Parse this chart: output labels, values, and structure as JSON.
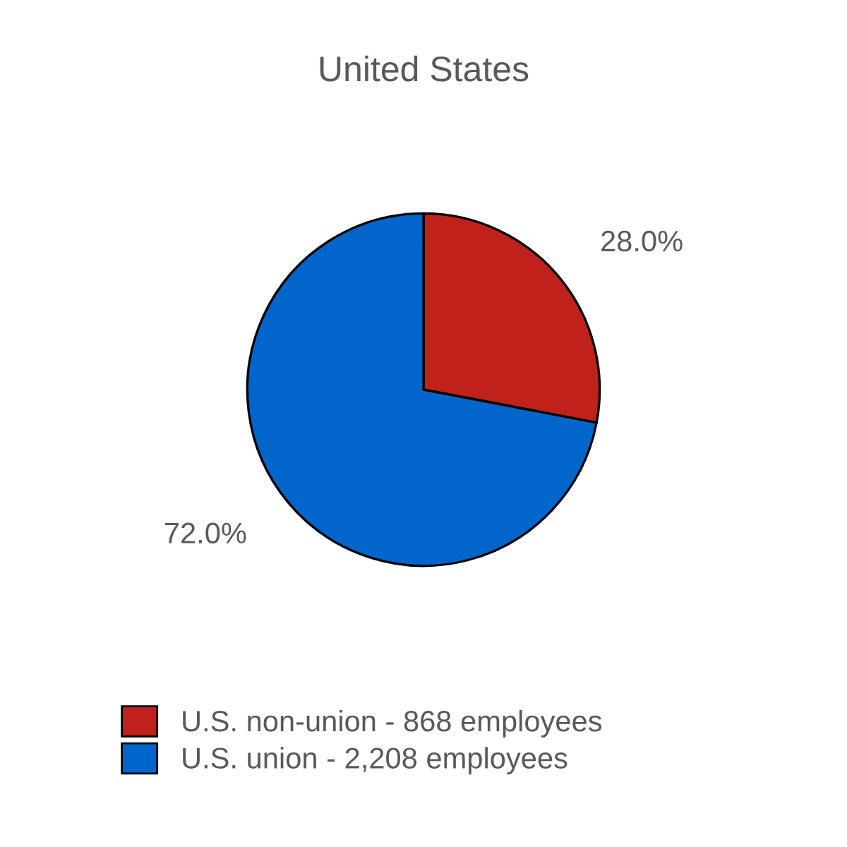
{
  "chart_data": {
    "type": "pie",
    "title": "United States",
    "categories": [
      "U.S. non-union - 868 employees",
      "U.S. union - 2,208 employees"
    ],
    "values": [
      28.0,
      72.0
    ],
    "colors": [
      "#c0211a",
      "#0066cc"
    ],
    "value_labels": [
      "28.0%",
      "72.0%"
    ],
    "legend": "bottom"
  }
}
